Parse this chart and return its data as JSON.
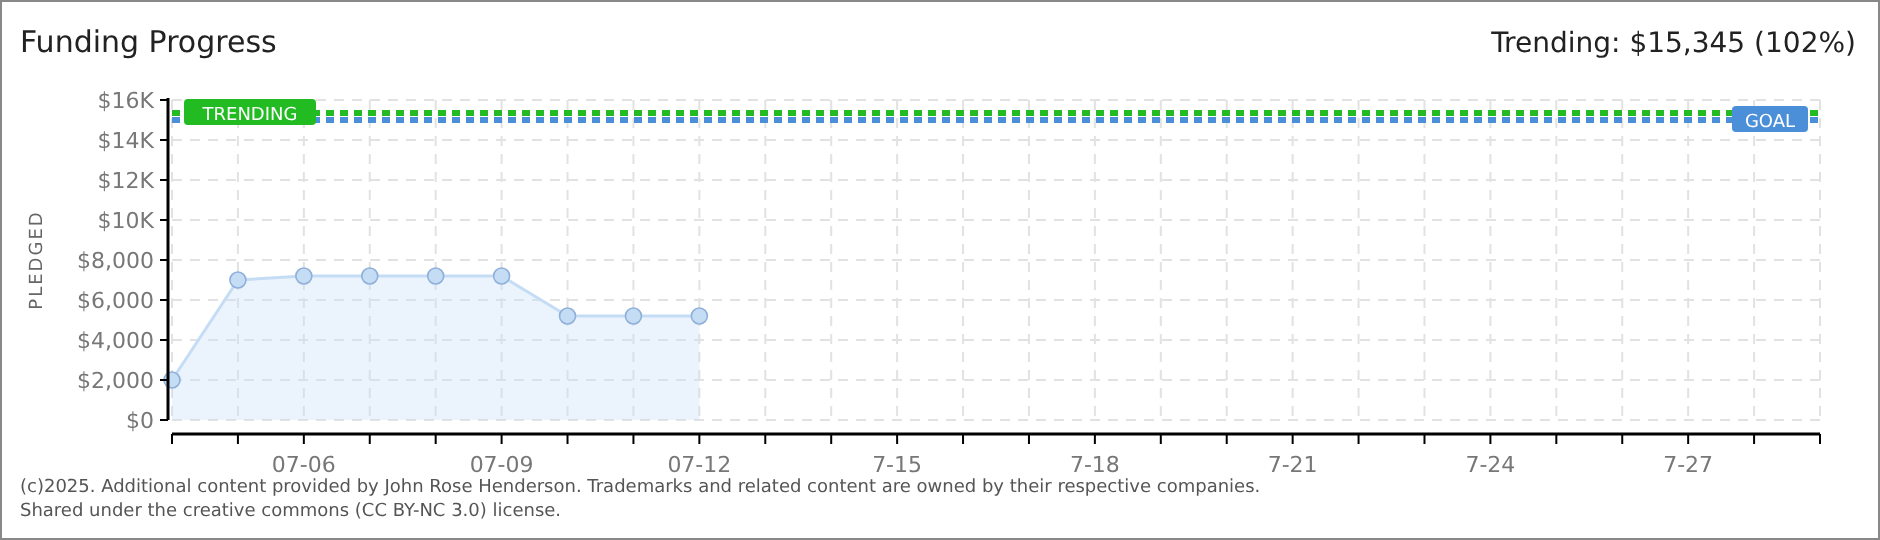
{
  "chart_data": {
    "type": "area",
    "title": "Funding Progress",
    "ylabel": "PLEDGED",
    "x": [
      "--07-04",
      "--07-05",
      "--07-06",
      "--07-07",
      "--07-08",
      "--07-09",
      "--07-10",
      "--07-11",
      "--07-12"
    ],
    "series": [
      {
        "color": "#c5dcf5",
        "values": [
          2000,
          7000,
          7200,
          7200,
          7200,
          7200,
          5200,
          5200,
          5200
        ]
      }
    ],
    "marker": "circle",
    "grid": true,
    "xlim": [
      "--07-04",
      "--07-29"
    ],
    "xticks": [
      {
        "value": "--07-04",
        "label": null
      },
      {
        "value": "--07-05",
        "label": null
      },
      {
        "value": "--07-06",
        "label": "07-06"
      },
      {
        "value": "--07-07",
        "label": null
      },
      {
        "value": "--07-08",
        "label": null
      },
      {
        "value": "--07-09",
        "label": "07-09"
      },
      {
        "value": "--07-10",
        "label": null
      },
      {
        "value": "--07-11",
        "label": null
      },
      {
        "value": "--07-12",
        "label": "07-12"
      },
      {
        "value": "--07-13",
        "label": null
      },
      {
        "value": "--07-14",
        "label": null
      },
      {
        "value": "--07-15",
        "label": "7-15"
      },
      {
        "value": "--07-16",
        "label": null
      },
      {
        "value": "--07-17",
        "label": null
      },
      {
        "value": "--07-18",
        "label": "7-18"
      },
      {
        "value": "--07-19",
        "label": null
      },
      {
        "value": "--07-20",
        "label": null
      },
      {
        "value": "--07-21",
        "label": "7-21"
      },
      {
        "value": "--07-22",
        "label": null
      },
      {
        "value": "--07-23",
        "label": null
      },
      {
        "value": "--07-24",
        "label": "7-24"
      },
      {
        "value": "--07-25",
        "label": null
      },
      {
        "value": "--07-26",
        "label": null
      },
      {
        "value": "--07-27",
        "label": "7-27"
      },
      {
        "value": "--07-28",
        "label": null
      },
      {
        "value": "--07-29",
        "label": null
      }
    ],
    "ylim": [
      0,
      16000
    ],
    "yticks": [
      {
        "value": 0,
        "label": "$0"
      },
      {
        "value": 2000,
        "label": "$2,000"
      },
      {
        "value": 4000,
        "label": "$4,000"
      },
      {
        "value": 6000,
        "label": "$6,000"
      },
      {
        "value": 8000,
        "label": "$8,000"
      },
      {
        "value": 10000,
        "label": "$10K"
      },
      {
        "value": 12000,
        "label": "$12K"
      },
      {
        "value": 14000,
        "label": "$14K"
      },
      {
        "value": 16000,
        "label": "$16K"
      }
    ],
    "ref_lines": [
      {
        "axis": "y",
        "value": 15345,
        "label": "TRENDING",
        "color": "#22bb22",
        "line_style": "dashed"
      },
      {
        "axis": "y",
        "value": 15000,
        "label": "GOAL",
        "color": "#4a8fd8",
        "line_style": "dashed"
      }
    ],
    "annotations": [
      "Trending: $15,345 (102%)",
      "(c)2025. Additional content provided by John Rose Henderson. Trademarks and related content are owned by their respective companies.",
      "Shared under the creative commons (CC BY-NC 3.0) license."
    ]
  }
}
